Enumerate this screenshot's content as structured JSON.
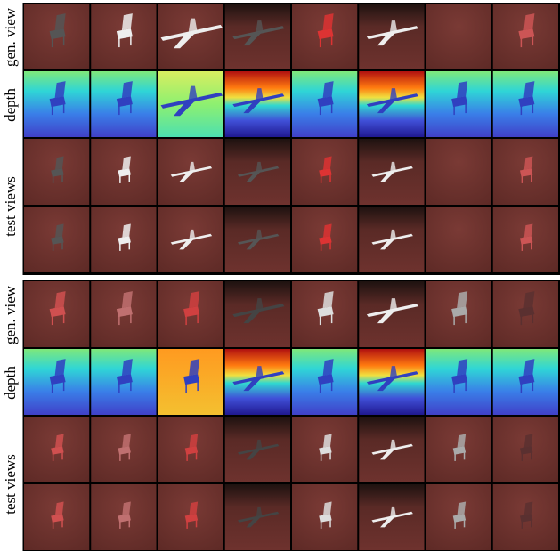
{
  "panels": [
    {
      "row_labels": {
        "gen_view": "gen. view",
        "depth": "depth",
        "test_views": "test views"
      }
    },
    {
      "row_labels": {
        "gen_view": "gen. view",
        "depth": "depth",
        "test_views": "test views"
      }
    }
  ]
}
